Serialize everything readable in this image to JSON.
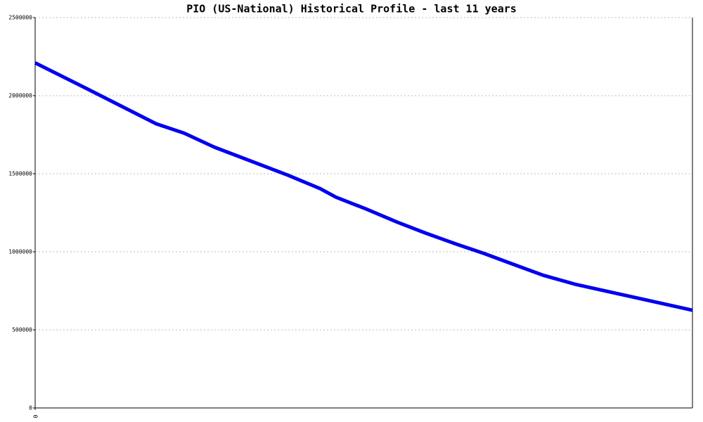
{
  "chart_data": {
    "type": "line",
    "title": "PIO (US-National) Historical Profile - last 11 years",
    "x": [
      0,
      11.3,
      24.3,
      29.9,
      36,
      50.8,
      57.2,
      60.4,
      66.4,
      72.7,
      78.4,
      84.5,
      90.1,
      96,
      102,
      108.7,
      132
    ],
    "series": [
      {
        "name": "PIO",
        "color": "#0000ee",
        "values": [
          2210000,
          2030000,
          1820000,
          1760000,
          1670000,
          1490000,
          1405000,
          1350000,
          1275000,
          1190000,
          1120000,
          1050000,
          990000,
          920000,
          850000,
          790000,
          626000
        ]
      }
    ],
    "xlim": [
      0,
      132
    ],
    "xticks": [
      0
    ],
    "ylim": [
      0,
      2500000
    ],
    "yticks": [
      0,
      500000,
      1000000,
      1500000,
      2000000,
      2500000
    ],
    "grid": true
  }
}
